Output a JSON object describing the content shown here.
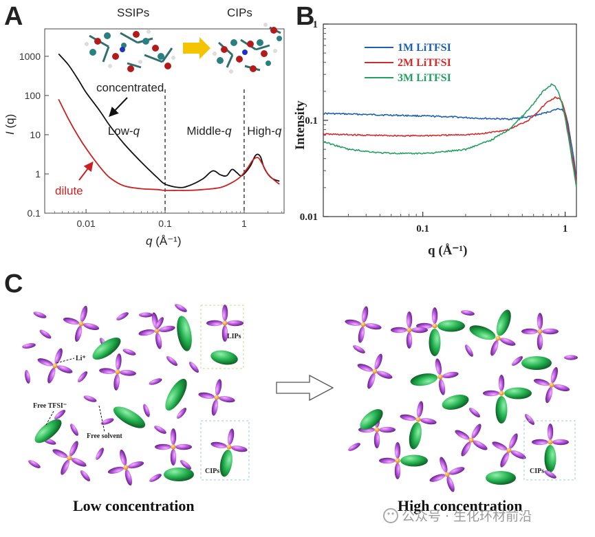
{
  "panels": {
    "a": "A",
    "b": "B",
    "c": "C"
  },
  "chart_data": [
    {
      "type": "line",
      "panel": "A",
      "xscale": "log",
      "yscale": "log",
      "xlim": [
        0.003,
        3.2
      ],
      "ylim": [
        0.1,
        5000
      ],
      "xticks": [
        "0.01",
        "0.1",
        "1"
      ],
      "yticks": [
        "0.1",
        "1",
        "10",
        "100",
        "1000"
      ],
      "xlabel_var": "q",
      "xlabel_unit": " (Å⁻¹)",
      "ylabel_var": "I",
      "ylabel_paren": " (q)",
      "structures": {
        "left": "SSIPs",
        "right": "CIPs"
      },
      "regions": [
        {
          "name": "Low-",
          "var": "q",
          "x": 0.03
        },
        {
          "name": "Middle-",
          "var": "q",
          "x": 0.36
        },
        {
          "name": "High-",
          "var": "q",
          "x": 1.8
        }
      ],
      "region_boundaries": [
        0.1,
        1
      ],
      "annotations": {
        "concentrated": "concentrated",
        "dilute": "dilute"
      },
      "series": [
        {
          "name": "concentrated",
          "color": "#111111",
          "x": [
            0.0045,
            0.006,
            0.008,
            0.01,
            0.015,
            0.02,
            0.03,
            0.05,
            0.08,
            0.1,
            0.15,
            0.2,
            0.3,
            0.4,
            0.5,
            0.6,
            0.7,
            0.8,
            0.9,
            1.0,
            1.2,
            1.4,
            1.6,
            1.8,
            2.2,
            2.8
          ],
          "y": [
            1150,
            600,
            250,
            120,
            40,
            17,
            6,
            2,
            0.8,
            0.55,
            0.45,
            0.5,
            0.75,
            1.2,
            0.95,
            0.9,
            1.3,
            1.1,
            0.9,
            1.0,
            1.6,
            3.0,
            2.8,
            1.4,
            0.8,
            0.65
          ]
        },
        {
          "name": "dilute",
          "color": "#cc1f1f",
          "x": [
            0.0045,
            0.006,
            0.008,
            0.01,
            0.015,
            0.02,
            0.03,
            0.05,
            0.08,
            0.1,
            0.15,
            0.2,
            0.3,
            0.5,
            0.7,
            0.9,
            1.1,
            1.3,
            1.5,
            1.7,
            2.0,
            2.5,
            2.8
          ],
          "y": [
            80,
            25,
            9,
            4.5,
            1.5,
            0.8,
            0.5,
            0.42,
            0.4,
            0.38,
            0.38,
            0.38,
            0.4,
            0.45,
            0.6,
            0.85,
            1.4,
            2.3,
            2.6,
            1.8,
            1.0,
            0.65,
            0.55
          ]
        }
      ]
    },
    {
      "type": "line",
      "panel": "B",
      "xscale": "log",
      "yscale": "log",
      "xlim": [
        0.02,
        1.2
      ],
      "ylim": [
        0.01,
        1
      ],
      "xticks": [
        "0.1",
        "1"
      ],
      "yticks": [
        "0.01",
        "0.1",
        "1"
      ],
      "xlabel": "q (Å⁻¹)",
      "ylabel": "Intensity",
      "legend_position": "top-left",
      "series": [
        {
          "name": "1M LiTFSI",
          "color": "#1a5fb4",
          "x": [
            0.02,
            0.04,
            0.08,
            0.15,
            0.25,
            0.4,
            0.55,
            0.7,
            0.8,
            0.9,
            0.95,
            1.0,
            1.05,
            1.1,
            1.15,
            1.2
          ],
          "y": [
            0.118,
            0.115,
            0.112,
            0.109,
            0.105,
            0.103,
            0.108,
            0.118,
            0.125,
            0.132,
            0.13,
            0.12,
            0.09,
            0.06,
            0.04,
            0.025
          ]
        },
        {
          "name": "2M LiTFSI",
          "color": "#d42a2a",
          "x": [
            0.02,
            0.04,
            0.08,
            0.15,
            0.25,
            0.4,
            0.55,
            0.65,
            0.75,
            0.85,
            0.9,
            0.95,
            1.0,
            1.05,
            1.1,
            1.15,
            1.2
          ],
          "y": [
            0.072,
            0.07,
            0.069,
            0.07,
            0.072,
            0.08,
            0.1,
            0.125,
            0.155,
            0.172,
            0.17,
            0.155,
            0.12,
            0.08,
            0.05,
            0.035,
            0.022
          ]
        },
        {
          "name": "3M LiTFSI",
          "color": "#22a060",
          "x": [
            0.02,
            0.03,
            0.05,
            0.08,
            0.12,
            0.2,
            0.3,
            0.4,
            0.5,
            0.6,
            0.7,
            0.8,
            0.85,
            0.9,
            0.95,
            1.0,
            1.05,
            1.1,
            1.15,
            1.2
          ],
          "y": [
            0.06,
            0.05,
            0.046,
            0.045,
            0.046,
            0.05,
            0.062,
            0.08,
            0.11,
            0.15,
            0.2,
            0.235,
            0.225,
            0.195,
            0.15,
            0.105,
            0.07,
            0.045,
            0.03,
            0.02
          ]
        }
      ]
    }
  ],
  "schematic": {
    "left_title": "Low concentration",
    "right_title": "High concentration",
    "labels": {
      "li": "Li⁺",
      "free_tfsi": "Free TFSI⁻",
      "free_solvent": "Free solvent",
      "lips": "LIPs",
      "cips_left": "CIPs",
      "cips_right": "CIPs"
    },
    "colors": {
      "solvent": "#b04ad8",
      "anion": "#26b254",
      "ion": "#f0a020",
      "arrow": "#f5c400"
    }
  },
  "watermark": "公众号 · 生化环材前沿"
}
